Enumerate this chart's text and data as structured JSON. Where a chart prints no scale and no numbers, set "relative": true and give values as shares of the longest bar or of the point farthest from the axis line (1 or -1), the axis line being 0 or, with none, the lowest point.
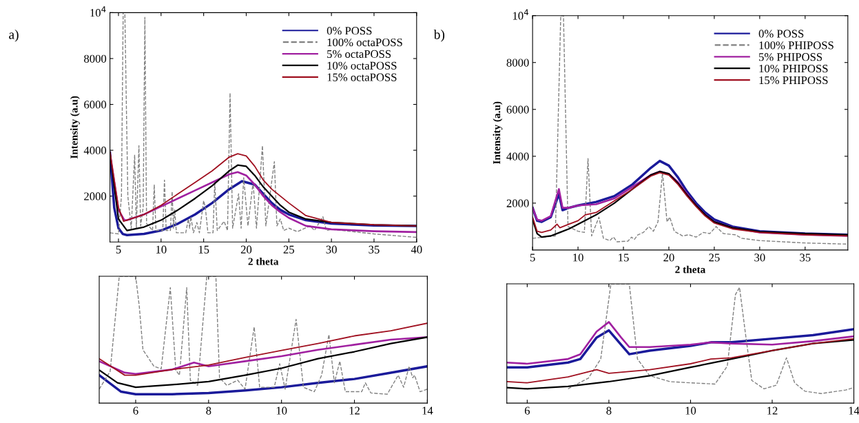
{
  "chart_data": [
    {
      "type": "line",
      "xlabel": "2 theta",
      "ylabel": "Intensity (a.u)",
      "annotations": [
        "a)"
      ],
      "legend": "top right",
      "xlim": [
        4,
        40
      ],
      "ylim": [
        0,
        10000
      ],
      "xticks": [
        5,
        10,
        15,
        20,
        25,
        30,
        35,
        40
      ],
      "yticks": [
        2000,
        4000,
        6000,
        8000,
        {
          "value": 10000,
          "label": "10$^{4}$"
        }
      ],
      "series": [
        {
          "name": "0% POSS",
          "color": "#1a1a9a",
          "x": [
            4,
            4.5,
            5,
            5.5,
            6,
            8,
            10,
            12,
            14,
            16,
            18,
            19.5,
            21,
            22,
            23,
            24,
            25,
            27,
            30,
            35,
            40
          ],
          "values": [
            3900,
            1500,
            600,
            350,
            300,
            350,
            500,
            800,
            1200,
            1700,
            2300,
            2650,
            2500,
            2100,
            1700,
            1400,
            1200,
            950,
            800,
            720,
            700
          ]
        },
        {
          "name": "100% octaPOSS",
          "color": "#808080",
          "line_style": "dashed",
          "x": [
            4,
            5,
            5.35,
            5.55,
            5.75,
            6.1,
            6.5,
            6.9,
            7.1,
            7.4,
            7.6,
            7.9,
            8.1,
            8.3,
            9.0,
            9.2,
            9.4,
            10.2,
            10.4,
            10.6,
            11.1,
            11.3,
            11.45,
            11.6,
            11.8,
            12.9,
            13.2,
            13.35,
            13.5,
            13.8,
            14.2,
            14.5,
            15.0,
            15.2,
            15.5,
            16.1,
            16.3,
            16.6,
            17.4,
            17.8,
            18.1,
            18.4,
            19.1,
            19.4,
            19.7,
            20.2,
            20.8,
            21.2,
            21.9,
            22.3,
            23.3,
            23.6,
            24.0,
            24.4,
            25.0,
            26,
            27.5,
            28,
            29,
            29.4,
            30,
            35,
            40
          ],
          "values": [
            400,
            350,
            2000,
            10000,
            10000,
            2000,
            600,
            3800,
            600,
            4200,
            700,
            1500,
            9800,
            800,
            500,
            2500,
            500,
            500,
            2700,
            500,
            500,
            2200,
            600,
            1400,
            400,
            400,
            1000,
            600,
            1100,
            400,
            850,
            400,
            1800,
            1500,
            400,
            400,
            2600,
            500,
            900,
            500,
            6500,
            600,
            2100,
            600,
            2800,
            700,
            2600,
            600,
            4200,
            700,
            3500,
            700,
            1000,
            500,
            600,
            450,
            700,
            500,
            1100,
            500,
            550,
            350,
            200
          ]
        },
        {
          "name": "5% octaPOSS",
          "color": "#a020a0",
          "x": [
            4,
            5,
            5.7,
            6,
            8,
            10,
            12,
            14,
            16,
            18,
            19,
            20,
            21,
            22,
            23,
            24,
            25,
            27,
            30,
            35,
            40
          ],
          "values": [
            3900,
            1400,
            950,
            950,
            1200,
            1550,
            1900,
            2250,
            2600,
            2950,
            3050,
            2900,
            2500,
            2000,
            1600,
            1300,
            1050,
            700,
            550,
            470,
            430
          ]
        },
        {
          "name": "10% octaPOSS",
          "color": "#000000",
          "x": [
            4,
            5,
            6,
            8,
            10,
            12,
            14,
            16,
            18,
            19,
            20,
            21,
            22,
            23,
            24,
            25,
            27,
            30,
            35,
            40
          ],
          "values": [
            3900,
            1000,
            500,
            650,
            950,
            1400,
            1900,
            2450,
            3100,
            3350,
            3300,
            2900,
            2400,
            2000,
            1600,
            1300,
            1000,
            850,
            750,
            700
          ]
        },
        {
          "name": "15% octaPOSS",
          "color": "#a01020",
          "x": [
            4,
            5,
            5.6,
            6,
            8,
            10,
            12,
            14,
            16,
            18,
            19,
            20,
            21,
            22,
            23,
            24,
            25,
            27,
            30,
            35,
            40
          ],
          "values": [
            3900,
            1500,
            900,
            950,
            1200,
            1600,
            2100,
            2600,
            3100,
            3700,
            3850,
            3750,
            3300,
            2700,
            2300,
            2000,
            1700,
            1150,
            850,
            750,
            700
          ]
        }
      ]
    },
    {
      "type": "line",
      "xlabel": "2 theta",
      "ylabel": "Intensity (a.u)",
      "annotations": [
        "b)"
      ],
      "legend": "top right",
      "xlim": [
        5,
        39.7
      ],
      "ylim": [
        0,
        10000
      ],
      "xticks": [
        5,
        10,
        15,
        20,
        25,
        30,
        35
      ],
      "yticks": [
        2000,
        4000,
        6000,
        8000,
        {
          "value": 10000,
          "label": "10$^{4}$"
        }
      ],
      "series": [
        {
          "name": "0% POSS",
          "color": "#1a1a9a",
          "x": [
            5,
            5.5,
            6,
            7,
            7.9,
            8.3,
            9,
            10,
            12,
            14,
            16,
            18,
            19,
            20,
            21,
            22,
            23,
            24,
            25,
            27,
            30,
            35,
            39.7
          ],
          "values": [
            1800,
            1250,
            1200,
            1400,
            2400,
            1700,
            1800,
            1900,
            2050,
            2300,
            2800,
            3500,
            3800,
            3600,
            3100,
            2500,
            2000,
            1600,
            1300,
            1000,
            800,
            700,
            650
          ]
        },
        {
          "name": "100% PHIPOSS",
          "color": "#808080",
          "line_style": "dashed",
          "x": [
            5,
            7.5,
            8.1,
            8.4,
            8.9,
            10,
            10.7,
            11.1,
            11.5,
            12.3,
            12.8,
            13.5,
            13.9,
            14.3,
            15.5,
            15.9,
            16.2,
            16.6,
            17.2,
            17.8,
            18.3,
            18.8,
            19.3,
            19.8,
            20.1,
            20.6,
            21.5,
            22.2,
            23,
            23.8,
            24.5,
            25.2,
            26,
            27.3,
            28,
            30,
            35,
            39.7
          ],
          "values": [
            500,
            600,
            10000,
            10000,
            1000,
            800,
            750,
            3900,
            600,
            1400,
            500,
            400,
            550,
            350,
            380,
            550,
            450,
            650,
            750,
            1000,
            800,
            1200,
            3300,
            1200,
            1400,
            800,
            600,
            650,
            550,
            750,
            700,
            1000,
            700,
            650,
            500,
            400,
            300,
            250
          ]
        },
        {
          "name": "5% PHIPOSS",
          "color": "#a020a0",
          "x": [
            5,
            5.5,
            6,
            7,
            7.9,
            8.3,
            9,
            10,
            12,
            14,
            16,
            18,
            19,
            20,
            21,
            22,
            23,
            24,
            25,
            27,
            30,
            35,
            39.7
          ],
          "values": [
            1800,
            1300,
            1250,
            1450,
            2600,
            1800,
            1800,
            1900,
            1950,
            2200,
            2700,
            3200,
            3350,
            3250,
            2900,
            2400,
            1900,
            1500,
            1200,
            950,
            750,
            650,
            600
          ]
        },
        {
          "name": "10% PHIPOSS",
          "color": "#000000",
          "x": [
            5,
            5.5,
            6,
            7,
            8,
            9,
            10,
            12,
            14,
            16,
            18,
            19,
            20,
            21,
            22,
            23,
            24,
            25,
            27,
            30,
            35,
            39.7
          ],
          "values": [
            1300,
            700,
            550,
            600,
            750,
            900,
            1100,
            1500,
            2000,
            2600,
            3200,
            3350,
            3250,
            2850,
            2350,
            1900,
            1500,
            1200,
            950,
            780,
            700,
            650
          ]
        },
        {
          "name": "15% PHIPOSS",
          "color": "#a01020",
          "x": [
            5,
            5.5,
            6,
            7,
            7.7,
            8,
            9,
            10,
            10.8,
            12,
            14,
            16,
            18,
            19,
            20,
            21,
            22,
            23,
            24,
            25,
            27,
            30,
            35,
            39.7
          ],
          "values": [
            1400,
            800,
            750,
            850,
            1100,
            950,
            1100,
            1250,
            1500,
            1600,
            2100,
            2600,
            3150,
            3300,
            3200,
            2800,
            2300,
            1850,
            1450,
            1150,
            900,
            750,
            650,
            600
          ]
        }
      ]
    },
    {
      "type": "line",
      "relative": true,
      "tick_labels": "x",
      "xlim": [
        5,
        14
      ],
      "xticks": [
        6,
        8,
        10,
        12,
        14
      ],
      "series": [
        {
          "color": "#1a1a9a",
          "x": [
            5,
            5.6,
            6,
            7,
            8,
            9,
            10,
            11,
            12,
            13,
            14
          ],
          "values": [
            0.22,
            0.09,
            0.07,
            0.07,
            0.08,
            0.1,
            0.125,
            0.16,
            0.19,
            0.24,
            0.29
          ]
        },
        {
          "color": "#808080",
          "line_style": "dashed",
          "x": [
            5,
            5.3,
            5.55,
            6.0,
            6.1,
            6.2,
            6.5,
            6.7,
            6.95,
            7.1,
            7.2,
            7.4,
            7.5,
            7.7,
            7.95,
            8.2,
            8.3,
            8.5,
            8.8,
            9.0,
            9.25,
            9.4,
            9.8,
            9.95,
            10.1,
            10.4,
            10.6,
            10.9,
            11.1,
            11.3,
            11.45,
            11.6,
            11.75,
            12.2,
            12.3,
            12.45,
            12.9,
            13.2,
            13.35,
            13.5,
            13.6,
            13.65,
            13.8,
            14
          ],
          "values": [
            0.11,
            0.25,
            1,
            1,
            0.76,
            0.42,
            0.29,
            0.27,
            0.91,
            0.26,
            0.22,
            0.91,
            0.18,
            0.14,
            1,
            1,
            0.2,
            0.14,
            0.18,
            0.11,
            0.6,
            0.125,
            0.125,
            0.31,
            0.11,
            0.66,
            0.125,
            0.09,
            0.22,
            0.54,
            0.16,
            0.33,
            0.09,
            0.09,
            0.16,
            0.08,
            0.07,
            0.22,
            0.125,
            0.29,
            0.2,
            0.22,
            0.09,
            0.11
          ]
        },
        {
          "color": "#a020a0",
          "x": [
            5,
            5.7,
            6,
            7,
            7.6,
            8,
            9,
            10,
            11,
            12,
            13,
            14
          ],
          "values": [
            0.33,
            0.24,
            0.23,
            0.265,
            0.32,
            0.29,
            0.33,
            0.37,
            0.42,
            0.46,
            0.5,
            0.52
          ]
        },
        {
          "color": "#000000",
          "x": [
            5,
            5.5,
            6,
            7,
            8,
            9,
            10,
            11,
            12,
            13,
            14
          ],
          "values": [
            0.26,
            0.16,
            0.125,
            0.145,
            0.17,
            0.22,
            0.275,
            0.35,
            0.405,
            0.47,
            0.52
          ]
        },
        {
          "color": "#a01020",
          "x": [
            5,
            5.7,
            6,
            7,
            8,
            9,
            10,
            11,
            12,
            13,
            14
          ],
          "values": [
            0.35,
            0.22,
            0.22,
            0.265,
            0.3,
            0.36,
            0.415,
            0.47,
            0.53,
            0.57,
            0.63
          ]
        }
      ]
    },
    {
      "type": "line",
      "relative": true,
      "tick_labels": "x",
      "xlim": [
        5.5,
        14
      ],
      "xticks": [
        6,
        8,
        10,
        12,
        14
      ],
      "series": [
        {
          "color": "#1a1a9a",
          "x": [
            5.5,
            6,
            7,
            7.3,
            7.7,
            8.0,
            8.3,
            8.5,
            9,
            10,
            10.5,
            11,
            12,
            13,
            14
          ],
          "values": [
            0.3,
            0.3,
            0.34,
            0.37,
            0.55,
            0.61,
            0.49,
            0.41,
            0.44,
            0.48,
            0.51,
            0.51,
            0.54,
            0.57,
            0.62
          ]
        },
        {
          "color": "#808080",
          "line_style": "dashed",
          "x": [
            7.0,
            7.5,
            7.8,
            8.05,
            8.5,
            8.7,
            9.0,
            9.5,
            10,
            10.6,
            10.9,
            11.1,
            11.2,
            11.35,
            11.5,
            11.8,
            12.1,
            12.35,
            12.55,
            12.8,
            13.2,
            13.8,
            14
          ],
          "values": [
            0.12,
            0.21,
            0.37,
            1,
            1,
            0.37,
            0.23,
            0.18,
            0.17,
            0.16,
            0.31,
            0.91,
            0.97,
            0.57,
            0.19,
            0.12,
            0.15,
            0.38,
            0.17,
            0.1,
            0.08,
            0.11,
            0.13
          ]
        },
        {
          "color": "#a020a0",
          "x": [
            5.5,
            6,
            7,
            7.3,
            7.7,
            8.0,
            8.3,
            8.5,
            9,
            10,
            10.5,
            11,
            12,
            13,
            14
          ],
          "values": [
            0.34,
            0.33,
            0.37,
            0.41,
            0.6,
            0.68,
            0.55,
            0.47,
            0.47,
            0.49,
            0.51,
            0.5,
            0.49,
            0.52,
            0.56
          ]
        },
        {
          "color": "#000000",
          "x": [
            5.5,
            6,
            7,
            8,
            9,
            10,
            11,
            12,
            13,
            14
          ],
          "values": [
            0.13,
            0.12,
            0.14,
            0.18,
            0.23,
            0.3,
            0.37,
            0.44,
            0.5,
            0.53
          ]
        },
        {
          "color": "#a01020",
          "x": [
            5.5,
            6,
            7,
            7.7,
            8,
            9,
            10,
            10.5,
            11,
            12,
            13,
            14
          ],
          "values": [
            0.18,
            0.17,
            0.22,
            0.28,
            0.25,
            0.28,
            0.33,
            0.37,
            0.38,
            0.44,
            0.5,
            0.54
          ]
        }
      ]
    }
  ]
}
